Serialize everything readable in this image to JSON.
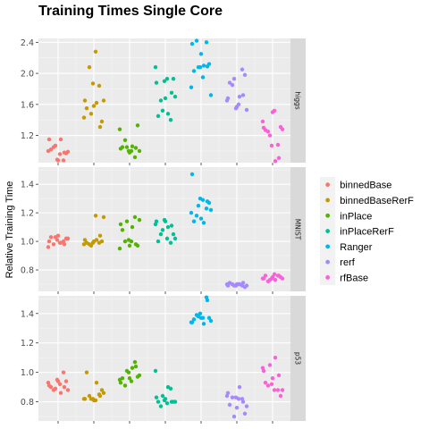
{
  "chart_data": {
    "type": "scatter",
    "title": "Training Times Single Core",
    "ylabel": "Relative Training Time",
    "xlabel": "",
    "grid": true,
    "legend_position": "right",
    "groups": [
      "binnedBase",
      "binnedBaseRerF",
      "inPlace",
      "inPlaceRerF",
      "Ranger",
      "rerf",
      "rfBase"
    ],
    "colors": {
      "binnedBase": "#F8766D",
      "binnedBaseRerF": "#C49A00",
      "inPlace": "#53B400",
      "inPlaceRerF": "#00C094",
      "Ranger": "#00B6EB",
      "rerf": "#A58AFF",
      "rfBase": "#FB61D7"
    },
    "panels": [
      {
        "strip": "higgs",
        "ylim": [
          0.85,
          2.45
        ],
        "yticks": [
          1.2,
          1.6,
          2.0,
          2.4
        ],
        "ytick_labels": [
          "1.2",
          "1.6",
          "2.0",
          "2.4"
        ],
        "series": [
          {
            "name": "binnedBase",
            "values": [
              1.0,
              0.88,
              1.05,
              0.97,
              0.89,
              1.15,
              1.02,
              0.99,
              0.88,
              1.07,
              0.98,
              1.15,
              0.96
            ]
          },
          {
            "name": "binnedBaseRerF",
            "values": [
              1.43,
              1.84,
              2.08,
              1.38,
              1.87,
              1.62,
              1.55,
              1.65,
              1.58,
              1.48,
              1.31,
              1.65,
              2.28
            ]
          },
          {
            "name": "inPlace",
            "values": [
              1.28,
              0.92,
              1.14,
              1.33,
              1.0,
              1.06,
              1.05,
              1.0,
              0.98,
              1.05,
              1.04,
              1.03,
              1.0
            ]
          },
          {
            "name": "inPlaceRerF",
            "values": [
              2.08,
              1.4,
              1.65,
              1.93,
              1.9,
              1.48,
              1.45,
              1.7,
              1.68,
              1.52,
              1.75,
              1.88,
              1.93
            ]
          },
          {
            "name": "Ranger",
            "values": [
              1.82,
              2.4,
              2.42,
              2.12,
              2.08,
              2.1,
              2.03,
              1.72,
              2.25,
              2.08,
              2.09,
              2.38,
              1.95
            ]
          },
          {
            "name": "rerf",
            "values": [
              1.65,
              2.05,
              1.85,
              1.98,
              1.55,
              1.7,
              1.88,
              1.53,
              1.57,
              1.93,
              1.72,
              1.68,
              1.6
            ]
          },
          {
            "name": "rfBase",
            "values": [
              1.38,
              1.08,
              1.25,
              1.31,
              1.07,
              0.87,
              1.27,
              1.28,
              1.5,
              1.2,
              0.91,
              1.3,
              1.52
            ]
          }
        ]
      },
      {
        "strip": "MNIST",
        "ylim": [
          0.65,
          1.52
        ],
        "yticks": [
          0.8,
          1.0,
          1.2,
          1.4
        ],
        "ytick_labels": [
          "0.8",
          "1.0",
          "1.2",
          "1.4"
        ],
        "series": [
          {
            "name": "binnedBase",
            "values": [
              0.96,
              1.0,
              0.98,
              1.02,
              1.01,
              0.99,
              1.03,
              1.02,
              1.04,
              1.03,
              0.98,
              1.0,
              0.99
            ]
          },
          {
            "name": "binnedBaseRerF",
            "values": [
              0.98,
              0.99,
              0.98,
              1.0,
              0.99,
              1.01,
              0.99,
              1.17,
              1.0,
              0.97,
              1.04,
              1.01,
              1.18
            ]
          },
          {
            "name": "inPlace",
            "values": [
              0.95,
              1.17,
              1.0,
              0.97,
              1.01,
              1.1,
              1.08,
              1.15,
              0.97,
              1.14,
              0.98,
              1.12,
              1.0
            ]
          },
          {
            "name": "inPlaceRerF",
            "values": [
              1.12,
              0.99,
              1.05,
              1.05,
              1.15,
              1.1,
              1.0,
              1.02,
              1.14,
              1.08,
              1.11,
              1.14,
              1.02
            ]
          },
          {
            "name": "Ranger",
            "values": [
              1.2,
              1.23,
              1.18,
              1.27,
              1.3,
              1.13,
              1.14,
              1.22,
              1.16,
              1.25,
              1.28,
              1.47,
              1.29
            ]
          },
          {
            "name": "rerf",
            "values": [
              0.7,
              0.69,
              0.7,
              0.68,
              0.69,
              0.7,
              0.71,
              0.69,
              0.7,
              0.69,
              0.71,
              0.69,
              0.7
            ]
          },
          {
            "name": "rfBase",
            "values": [
              0.74,
              0.76,
              0.72,
              0.75,
              0.74,
              0.73,
              0.76,
              0.74,
              0.75,
              0.73,
              0.76,
              0.74,
              0.77
            ]
          }
        ]
      },
      {
        "strip": "p53",
        "ylim": [
          0.67,
          1.52
        ],
        "yticks": [
          0.8,
          1.0,
          1.2,
          1.4
        ],
        "ytick_labels": [
          "0.8",
          "1.0",
          "1.2",
          "1.4"
        ],
        "series": [
          {
            "name": "binnedBase",
            "values": [
              0.93,
              1.0,
              0.88,
              0.94,
              0.95,
              0.86,
              0.9,
              0.88,
              0.94,
              0.89,
              0.9,
              0.91,
              0.92
            ]
          },
          {
            "name": "binnedBaseRerF",
            "values": [
              0.82,
              0.85,
              0.84,
              0.88,
              0.82,
              0.93,
              1.0,
              0.86,
              0.81,
              0.82,
              0.84,
              0.82,
              0.81
            ]
          },
          {
            "name": "inPlace",
            "values": [
              0.95,
              1.07,
              0.91,
              0.97,
              1.0,
              1.03,
              0.96,
              0.98,
              0.96,
              1.01,
              1.04,
              0.93,
              0.94
            ]
          },
          {
            "name": "inPlaceRerF",
            "values": [
              1.01,
              0.89,
              0.77,
              0.8,
              0.81,
              0.9,
              0.8,
              0.8,
              0.82,
              0.84,
              0.8,
              0.83,
              0.79
            ]
          },
          {
            "name": "Ranger",
            "values": [
              1.34,
              1.51,
              1.39,
              1.37,
              1.4,
              1.33,
              1.36,
              1.35,
              1.37,
              1.38,
              1.49,
              1.34,
              1.37
            ]
          },
          {
            "name": "rerf",
            "values": [
              0.84,
              0.82,
              0.83,
              0.72,
              0.83,
              0.9,
              0.78,
              0.77,
              0.76,
              0.7,
              0.8,
              0.86,
              0.82
            ]
          },
          {
            "name": "rfBase",
            "values": [
              1.03,
              0.88,
              0.91,
              0.84,
              0.92,
              1.1,
              0.93,
              0.88,
              0.96,
              1.05,
              0.98,
              1.01,
              0.88
            ]
          }
        ]
      }
    ]
  }
}
